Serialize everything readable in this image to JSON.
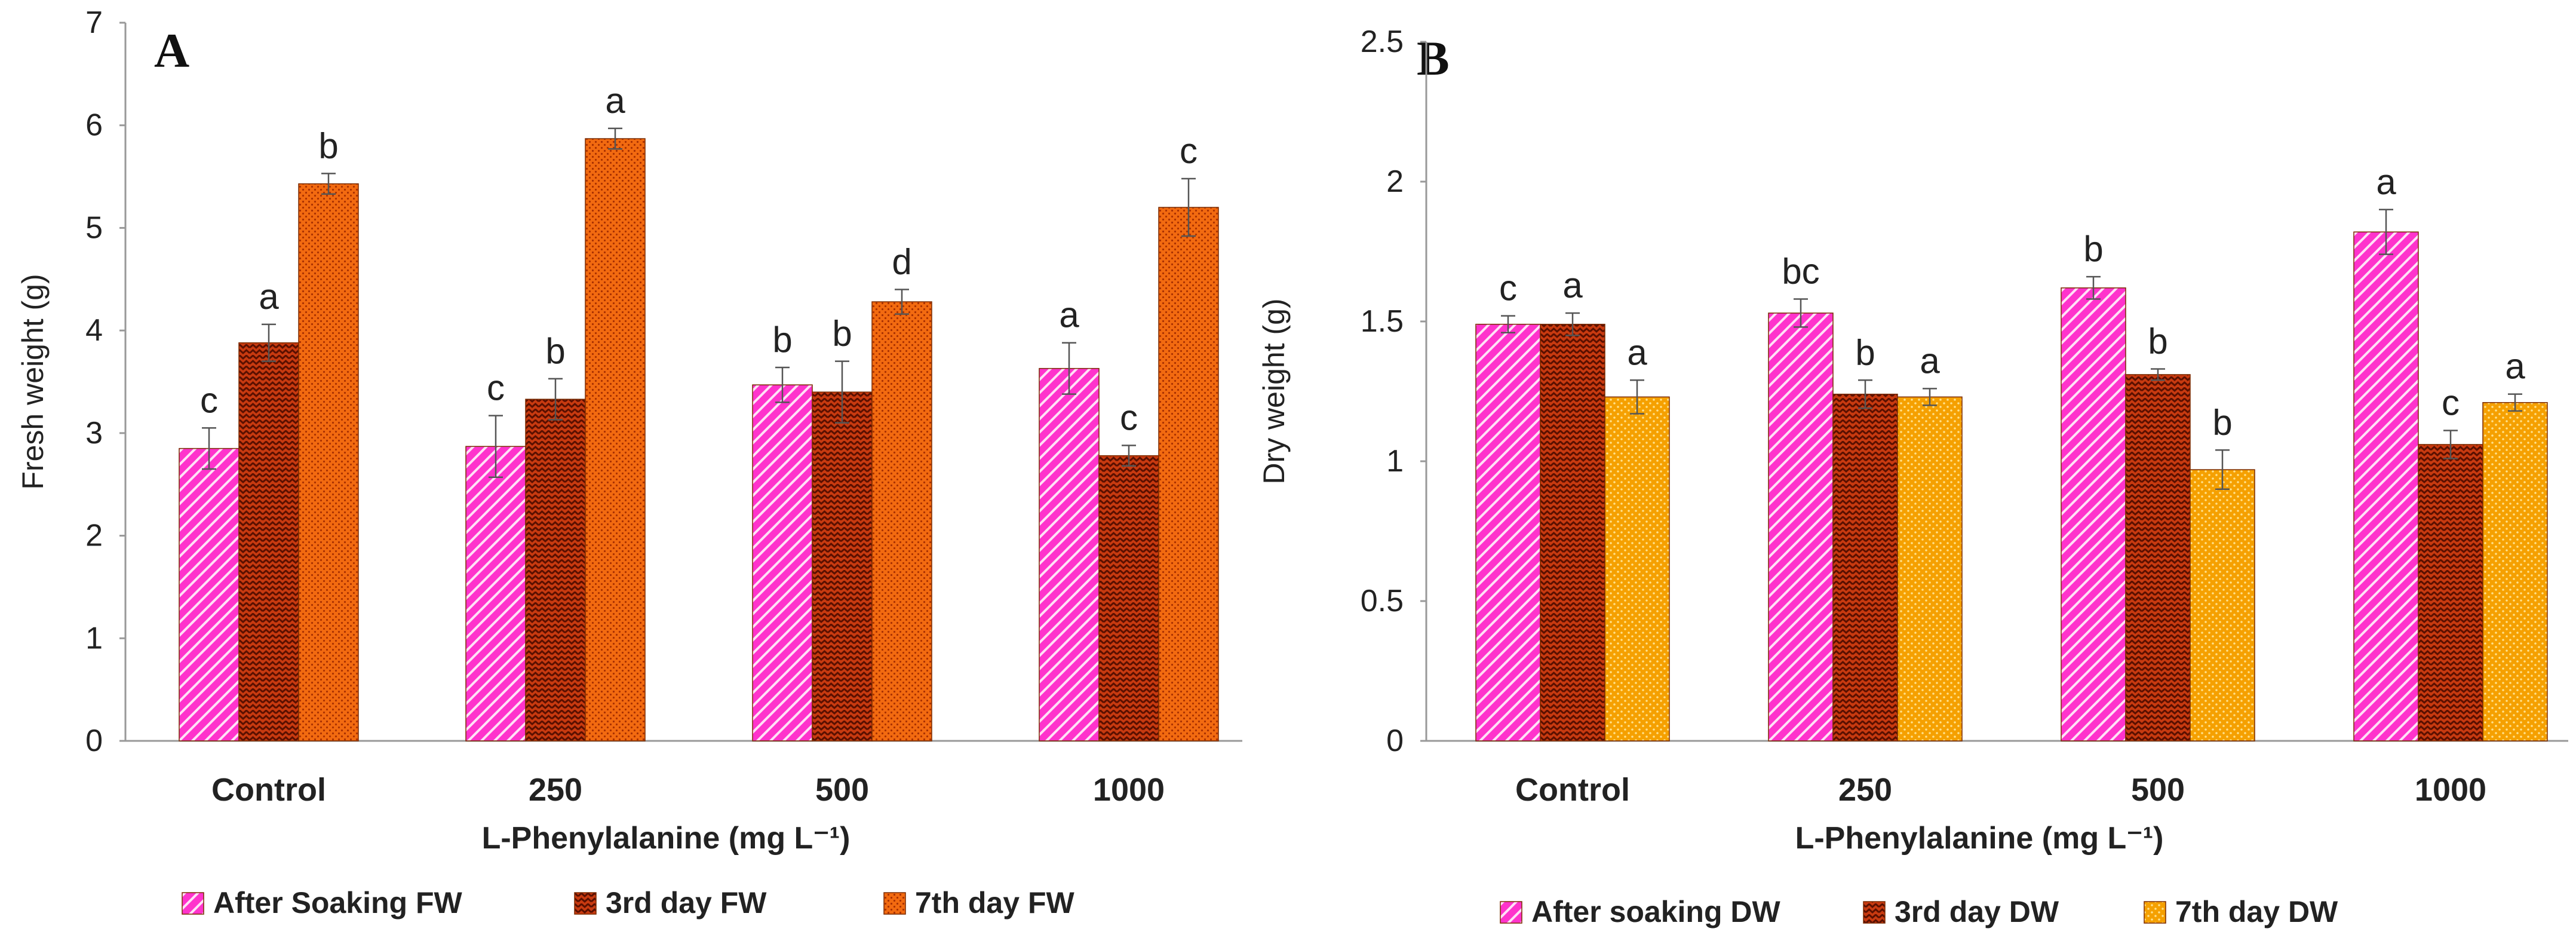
{
  "colors": {
    "after_soaking": "#ff33cc",
    "third_day": "#c83a10",
    "seventh_day_fw": "#f26a10",
    "seventh_day_dw": "#f5a000",
    "axis": "#999999",
    "error_bar": "#555555"
  },
  "chart_data": [
    {
      "type": "bar",
      "panel_label": "A",
      "categories": [
        "Control",
        "250",
        "500",
        "1000"
      ],
      "xlabel": "L-Phenylalanine (mg L⁻¹)",
      "ylabel": "Fresh weight (g)",
      "ylim": [
        0,
        7
      ],
      "yticks": [
        0,
        1,
        2,
        3,
        4,
        5,
        6,
        7
      ],
      "legend_position": "bottom",
      "series": [
        {
          "name": "After Soaking FW",
          "color_key": "after_soaking",
          "pattern": "diag",
          "values": [
            2.85,
            2.87,
            3.47,
            3.63
          ],
          "errors": [
            0.2,
            0.3,
            0.17,
            0.25
          ],
          "letters": [
            "c",
            "c",
            "b",
            "a"
          ]
        },
        {
          "name": "3rd day FW",
          "color_key": "third_day",
          "pattern": "zigzag",
          "values": [
            3.88,
            3.33,
            3.4,
            2.78
          ],
          "errors": [
            0.18,
            0.2,
            0.3,
            0.1
          ],
          "letters": [
            "a",
            "b",
            "b",
            "c"
          ]
        },
        {
          "name": "7th day FW",
          "color_key": "seventh_day_fw",
          "pattern": "dots",
          "values": [
            5.43,
            5.87,
            4.28,
            5.2
          ],
          "errors": [
            0.1,
            0.1,
            0.12,
            0.28
          ],
          "letters": [
            "b",
            "a",
            "d",
            "c"
          ]
        }
      ]
    },
    {
      "type": "bar",
      "panel_label": "B",
      "categories": [
        "Control",
        "250",
        "500",
        "1000"
      ],
      "xlabel": "L-Phenylalanine (mg L⁻¹)",
      "ylabel": "Dry weight (g)",
      "ylim": [
        0,
        2.5
      ],
      "yticks": [
        0,
        0.5,
        1,
        1.5,
        2,
        2.5
      ],
      "legend_position": "bottom",
      "series": [
        {
          "name": "After soaking DW",
          "color_key": "after_soaking",
          "pattern": "diag",
          "values": [
            1.49,
            1.53,
            1.62,
            1.82
          ],
          "errors": [
            0.03,
            0.05,
            0.04,
            0.08
          ],
          "letters": [
            "c",
            "bc",
            "b",
            "a"
          ]
        },
        {
          "name": "3rd day DW",
          "color_key": "third_day",
          "pattern": "zigzag",
          "values": [
            1.49,
            1.24,
            1.31,
            1.06
          ],
          "errors": [
            0.04,
            0.05,
            0.02,
            0.05
          ],
          "letters": [
            "a",
            "b",
            "b",
            "c"
          ]
        },
        {
          "name": "7th day DW",
          "color_key": "seventh_day_dw",
          "pattern": "dots",
          "values": [
            1.23,
            1.23,
            0.97,
            1.21
          ],
          "errors": [
            0.06,
            0.03,
            0.07,
            0.03
          ],
          "letters": [
            "a",
            "a",
            "b",
            "a"
          ]
        }
      ]
    }
  ]
}
